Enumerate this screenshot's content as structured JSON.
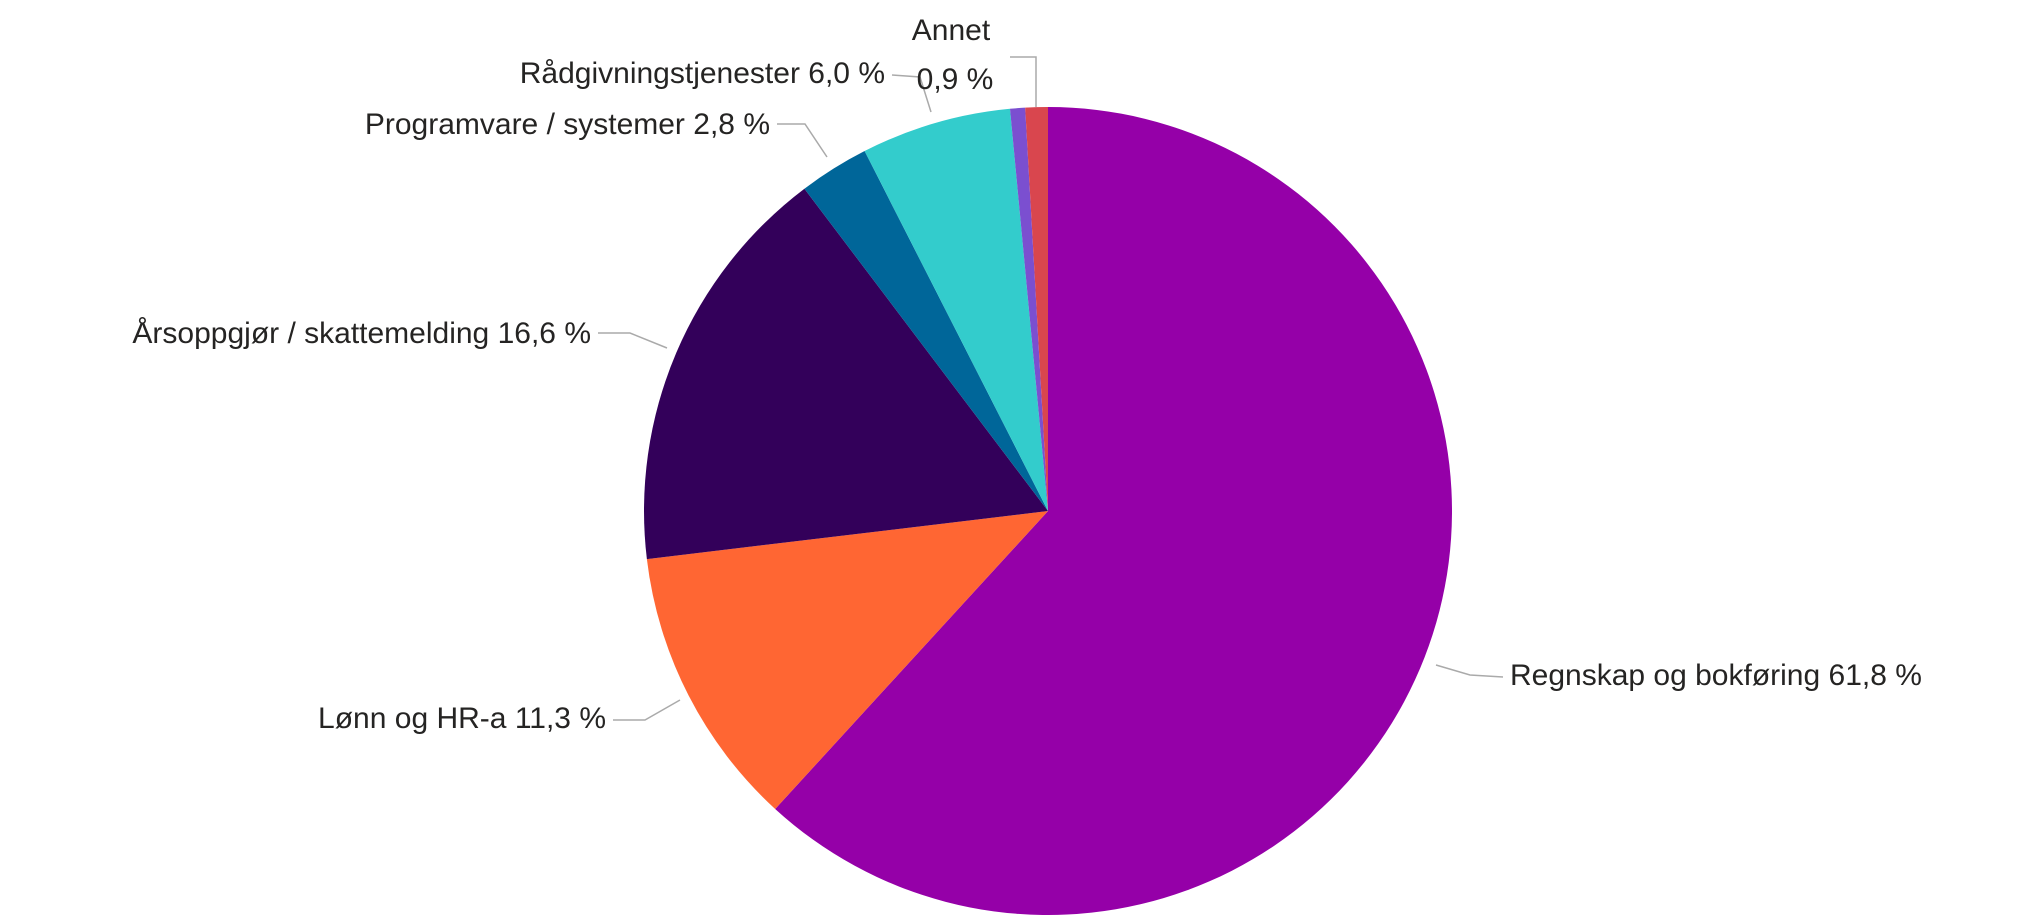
{
  "chart_data": {
    "type": "pie",
    "categories": [
      "Regnskap og bokføring",
      "Lønn og HR-a",
      "Årsoppgjør / skattemelding",
      "Programvare / systemer",
      "Rådgivningstjenester",
      null,
      "Annet"
    ],
    "values": [
      61.8,
      11.3,
      16.6,
      2.8,
      6.0,
      0.6,
      0.9
    ],
    "value_labels": [
      "61,8 %",
      "11,3 %",
      "16,6 %",
      "2,8 %",
      "6,0 %",
      null,
      "0,9 %"
    ],
    "colors": [
      "#9500a8",
      "#ff6633",
      "#33005a",
      "#006699",
      "#33cccc",
      "#7b4fd0",
      "#d9464e"
    ]
  }
}
